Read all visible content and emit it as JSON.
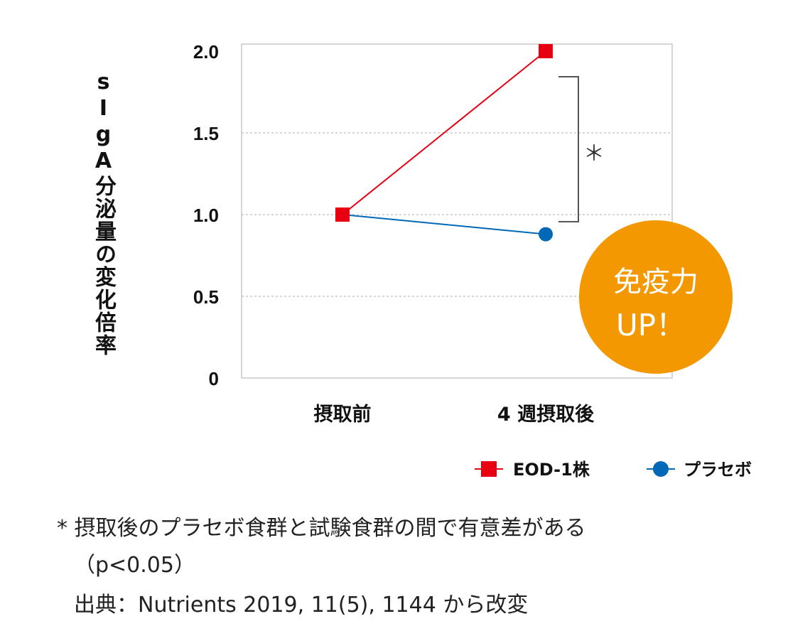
{
  "chart_data": {
    "type": "line",
    "ylabel": "sIgA分泌量の変化倍率",
    "categories": [
      "摂取前",
      "4 週摂取後"
    ],
    "yticks": [
      "0",
      "0.5",
      "1.0",
      "1.5",
      "2.0"
    ],
    "ylim": [
      0,
      2.0
    ],
    "grid": true,
    "legend_position": "bottom-right",
    "series": [
      {
        "name": "EOD-1株",
        "values": [
          1.0,
          2.0
        ],
        "color": "#e60012",
        "marker": "square"
      },
      {
        "name": "プラセボ",
        "values": [
          1.0,
          0.88
        ],
        "color": "#0068b7",
        "marker": "circle"
      }
    ],
    "annotation": "＊",
    "badge": {
      "line1": "免疫力",
      "line2": "UP！",
      "color": "#f39800"
    }
  },
  "footnotes": {
    "note1": "* 摂取後のプラセボ食群と試験食群の間で有意差がある",
    "note2": "（p<0.05）",
    "note3": "出典：Nutrients 2019, 11(5), 1144 から改変"
  }
}
